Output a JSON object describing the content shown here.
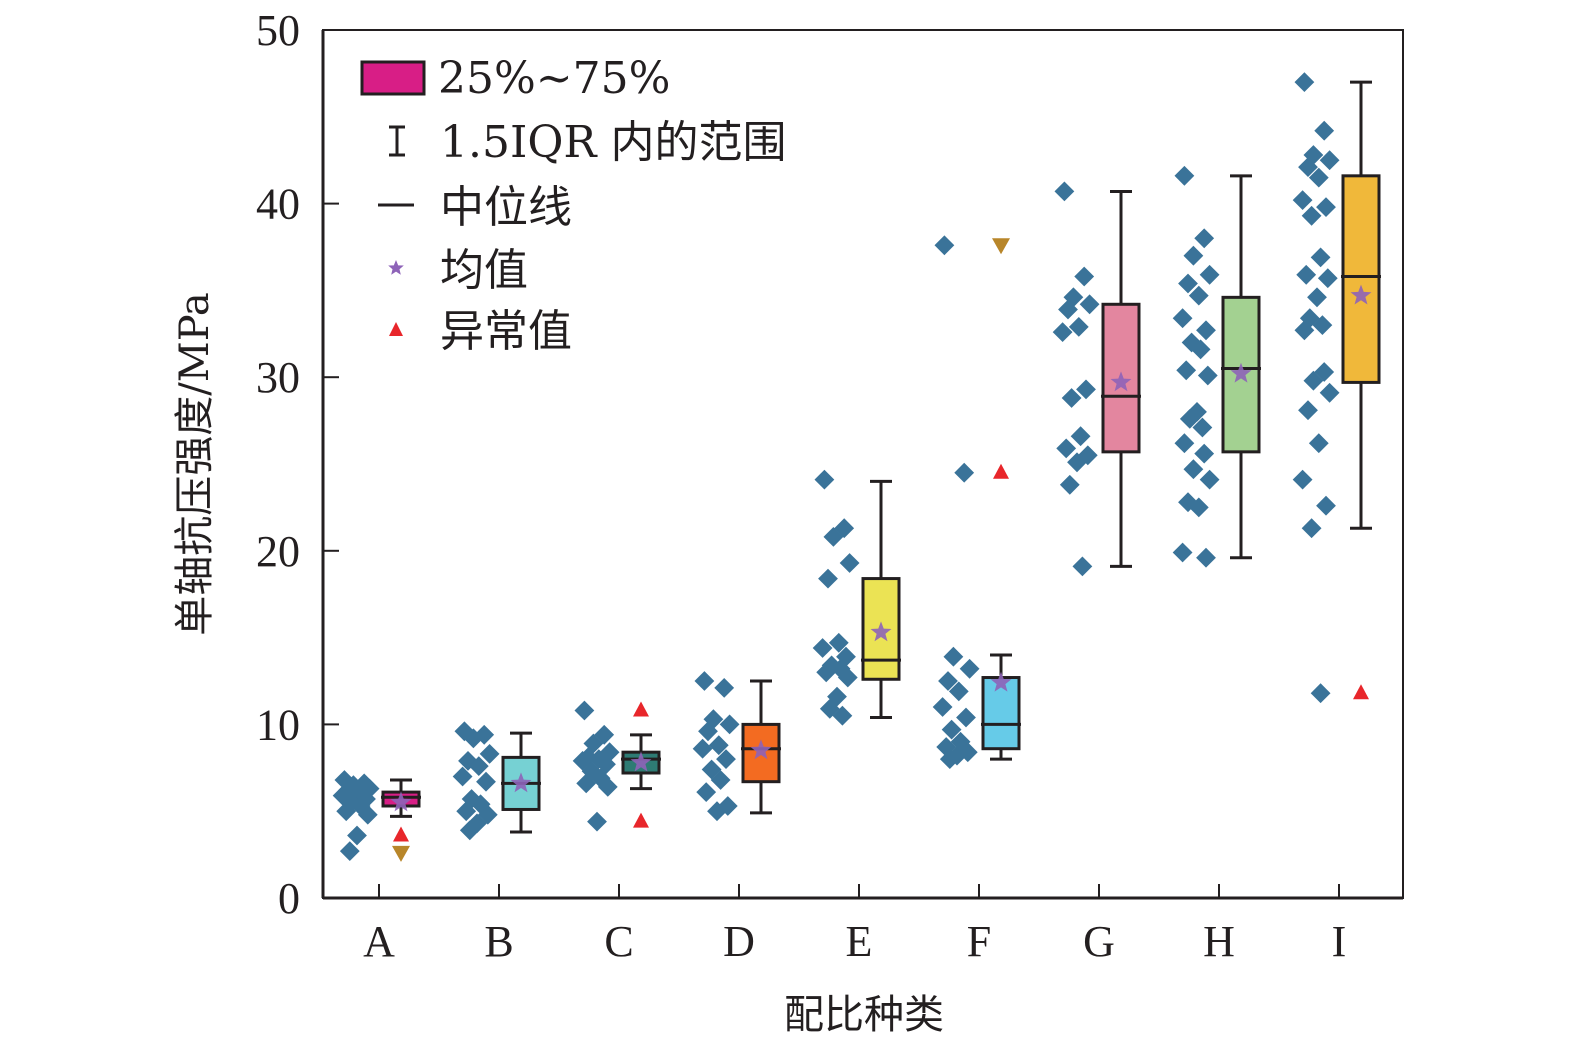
{
  "chart_data": {
    "type": "box",
    "title": "",
    "xlabel": "配比种类",
    "ylabel": "单轴抗压强度/MPa",
    "ylim": [
      0,
      50
    ],
    "yticks": [
      0,
      10,
      20,
      30,
      40,
      50
    ],
    "grid": false,
    "legend_position": "top-left",
    "legend": [
      {
        "label": "25%~75%",
        "marker": "box",
        "color": "#d81e86"
      },
      {
        "label": "1.5IQR 内的范围",
        "marker": "whisker",
        "color": "#231f20"
      },
      {
        "label": "中位线",
        "marker": "line",
        "color": "#231f20"
      },
      {
        "label": "均值",
        "marker": "star",
        "color": "#8e63b8"
      },
      {
        "label": "异常值",
        "marker": "triangle-up",
        "color": "#e8262b"
      }
    ],
    "categories": [
      "A",
      "B",
      "C",
      "D",
      "E",
      "F",
      "G",
      "H",
      "I"
    ],
    "scatter_color": "#3a7399",
    "mean_color": "#8e63b8",
    "outlier_color": "#e8262b",
    "extreme_color": "#b8862a",
    "groups": [
      {
        "name": "A",
        "color": "#d81e86",
        "q1": 5.3,
        "median": 5.8,
        "q3": 6.1,
        "whisker_low": 4.7,
        "whisker_high": 6.8,
        "mean": 5.5,
        "outliers": [
          3.6
        ],
        "extremes": [
          2.6
        ],
        "points": [
          6.8,
          6.6,
          6.5,
          6.3,
          6.2,
          6.0,
          5.9,
          5.7,
          5.5,
          5.3,
          5.0,
          4.8,
          3.6,
          2.7
        ]
      },
      {
        "name": "B",
        "color": "#76d1d3",
        "q1": 5.1,
        "median": 6.6,
        "q3": 8.1,
        "whisker_low": 3.8,
        "whisker_high": 9.5,
        "mean": 6.6,
        "outliers": [],
        "extremes": [],
        "points": [
          9.6,
          9.4,
          9.2,
          8.3,
          7.9,
          7.6,
          7.0,
          6.7,
          5.7,
          5.4,
          5.0,
          4.8,
          4.3,
          3.9
        ]
      },
      {
        "name": "C",
        "color": "#2e7b74",
        "q1": 7.2,
        "median": 8.0,
        "q3": 8.4,
        "whisker_low": 6.3,
        "whisker_high": 9.4,
        "mean": 7.8,
        "outliers": [
          10.8,
          4.4
        ],
        "extremes": [],
        "points": [
          10.8,
          9.4,
          8.9,
          8.4,
          8.1,
          8.0,
          7.9,
          7.7,
          7.3,
          6.9,
          6.6,
          6.4,
          4.4
        ]
      },
      {
        "name": "D",
        "color": "#f36b21",
        "q1": 6.7,
        "median": 8.6,
        "q3": 10.0,
        "whisker_low": 4.9,
        "whisker_high": 12.5,
        "mean": 8.5,
        "outliers": [],
        "extremes": [],
        "points": [
          12.5,
          12.1,
          10.3,
          10.0,
          9.6,
          8.8,
          8.6,
          8.0,
          7.4,
          6.8,
          6.1,
          5.3,
          5.0
        ]
      },
      {
        "name": "E",
        "color": "#ebe354",
        "q1": 12.6,
        "median": 13.7,
        "q3": 18.4,
        "whisker_low": 10.4,
        "whisker_high": 24.0,
        "mean": 15.3,
        "outliers": [],
        "extremes": [],
        "points": [
          24.1,
          21.3,
          20.8,
          19.3,
          18.4,
          14.7,
          14.4,
          13.9,
          13.4,
          13.2,
          13.0,
          12.7,
          11.6,
          10.9,
          10.5
        ]
      },
      {
        "name": "F",
        "color": "#66cbe8",
        "q1": 8.6,
        "median": 10.0,
        "q3": 12.7,
        "whisker_low": 8.0,
        "whisker_high": 14.0,
        "mean": 12.4,
        "outliers": [
          24.5
        ],
        "extremes": [
          37.6
        ],
        "points": [
          37.6,
          24.5,
          13.9,
          13.2,
          12.5,
          11.9,
          11.0,
          10.4,
          9.7,
          9.0,
          8.7,
          8.4,
          8.2,
          8.0
        ]
      },
      {
        "name": "G",
        "color": "#e3869f",
        "q1": 25.7,
        "median": 28.9,
        "q3": 34.2,
        "whisker_low": 19.1,
        "whisker_high": 40.7,
        "mean": 29.7,
        "outliers": [],
        "extremes": [],
        "points": [
          40.7,
          35.8,
          34.6,
          34.2,
          33.9,
          32.9,
          32.6,
          29.3,
          28.8,
          26.6,
          25.9,
          25.5,
          25.1,
          23.8,
          19.1
        ]
      },
      {
        "name": "H",
        "color": "#a3d191",
        "q1": 25.7,
        "median": 30.5,
        "q3": 34.6,
        "whisker_low": 19.6,
        "whisker_high": 41.6,
        "mean": 30.2,
        "outliers": [],
        "extremes": [],
        "points": [
          41.6,
          38.0,
          37.0,
          35.9,
          35.4,
          34.7,
          33.4,
          32.7,
          32.0,
          31.6,
          30.4,
          30.1,
          28.0,
          27.6,
          27.1,
          26.2,
          25.6,
          24.7,
          24.1,
          22.8,
          22.5,
          19.9,
          19.6
        ]
      },
      {
        "name": "I",
        "color": "#f0b83a",
        "q1": 29.7,
        "median": 35.8,
        "q3": 41.6,
        "whisker_low": 21.3,
        "whisker_high": 47.0,
        "mean": 34.7,
        "outliers": [
          11.8
        ],
        "extremes": [],
        "points": [
          47.0,
          44.2,
          42.8,
          42.5,
          42.1,
          41.5,
          40.2,
          39.8,
          39.3,
          36.9,
          35.9,
          35.7,
          34.6,
          33.4,
          33.0,
          32.7,
          30.3,
          29.8,
          29.1,
          28.1,
          26.2,
          24.1,
          22.6,
          21.3,
          11.8
        ]
      }
    ]
  }
}
